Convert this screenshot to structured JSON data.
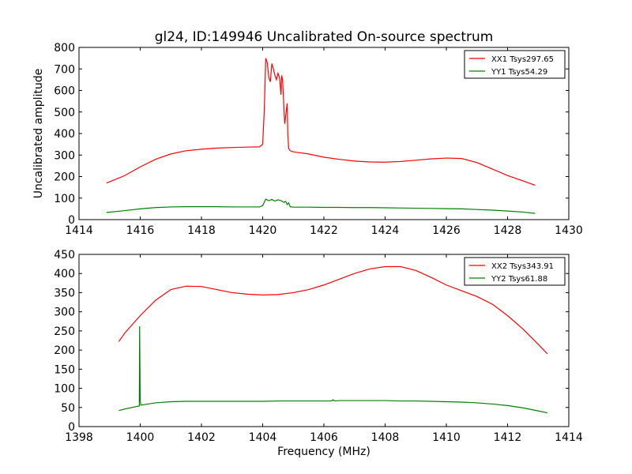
{
  "chart_data": [
    {
      "type": "line",
      "title": "gl24, ID:149946 Uncalibrated On-source spectrum",
      "xlabel": "",
      "ylabel": "Uncalibrated amplitude",
      "xlim": [
        1414,
        1430
      ],
      "ylim": [
        0,
        800
      ],
      "xticks": [
        1414,
        1416,
        1418,
        1420,
        1422,
        1424,
        1426,
        1428,
        1430
      ],
      "yticks": [
        0,
        100,
        200,
        300,
        400,
        500,
        600,
        700,
        800
      ],
      "legend_position": "top-right",
      "series": [
        {
          "name": "XX1 Tsys297.65",
          "color": "#ff0000",
          "x": [
            1414.9,
            1415.5,
            1416.0,
            1416.5,
            1417.0,
            1417.5,
            1418.0,
            1418.5,
            1419.0,
            1419.5,
            1419.9,
            1420.0,
            1420.05,
            1420.1,
            1420.15,
            1420.2,
            1420.25,
            1420.3,
            1420.35,
            1420.4,
            1420.45,
            1420.5,
            1420.55,
            1420.6,
            1420.62,
            1420.65,
            1420.7,
            1420.72,
            1420.75,
            1420.8,
            1420.82,
            1420.85,
            1420.9,
            1421.0,
            1421.5,
            1422.0,
            1422.5,
            1423.0,
            1423.5,
            1424.0,
            1424.5,
            1425.0,
            1425.5,
            1426.0,
            1426.5,
            1427.0,
            1427.5,
            1428.0,
            1428.5,
            1428.9
          ],
          "values": [
            170,
            205,
            245,
            280,
            305,
            320,
            327,
            332,
            335,
            337,
            338,
            350,
            500,
            750,
            730,
            660,
            640,
            725,
            700,
            670,
            650,
            680,
            660,
            580,
            670,
            650,
            500,
            445,
            480,
            540,
            400,
            330,
            320,
            315,
            305,
            290,
            280,
            272,
            268,
            267,
            270,
            276,
            282,
            286,
            284,
            265,
            235,
            205,
            180,
            160
          ]
        },
        {
          "name": "YY1 Tsys54.29",
          "color": "#008000",
          "x": [
            1414.9,
            1415.5,
            1416.0,
            1416.5,
            1417.0,
            1417.5,
            1418.0,
            1418.5,
            1419.0,
            1419.5,
            1419.9,
            1420.0,
            1420.1,
            1420.2,
            1420.3,
            1420.4,
            1420.5,
            1420.6,
            1420.7,
            1420.75,
            1420.8,
            1420.85,
            1420.9,
            1421.0,
            1421.5,
            1422.0,
            1422.5,
            1423.0,
            1423.5,
            1424.0,
            1424.5,
            1425.0,
            1425.5,
            1426.0,
            1426.5,
            1427.0,
            1427.5,
            1428.0,
            1428.5,
            1428.9
          ],
          "values": [
            33,
            42,
            50,
            56,
            59,
            60,
            60,
            60,
            59,
            59,
            59,
            65,
            95,
            88,
            94,
            86,
            92,
            88,
            80,
            85,
            70,
            78,
            60,
            58,
            58,
            57,
            57,
            56,
            56,
            55,
            54,
            53,
            52,
            51,
            50,
            47,
            44,
            40,
            35,
            29
          ]
        }
      ]
    },
    {
      "type": "line",
      "title": "",
      "xlabel": "Frequency (MHz)",
      "ylabel": "",
      "xlim": [
        1398,
        1414
      ],
      "ylim": [
        0,
        450
      ],
      "xticks": [
        1398,
        1400,
        1402,
        1404,
        1406,
        1408,
        1410,
        1412,
        1414
      ],
      "yticks": [
        0,
        50,
        100,
        150,
        200,
        250,
        300,
        350,
        400,
        450
      ],
      "legend_position": "top-right",
      "series": [
        {
          "name": "XX2 Tsys343.91",
          "color": "#ff0000",
          "x": [
            1399.3,
            1399.5,
            1400.0,
            1400.5,
            1401.0,
            1401.5,
            1402.0,
            1402.5,
            1403.0,
            1403.5,
            1404.0,
            1404.5,
            1405.0,
            1405.5,
            1406.0,
            1406.5,
            1407.0,
            1407.5,
            1408.0,
            1408.5,
            1409.0,
            1409.5,
            1410.0,
            1410.5,
            1411.0,
            1411.5,
            1412.0,
            1412.5,
            1413.0,
            1413.3
          ],
          "values": [
            222,
            245,
            290,
            330,
            358,
            367,
            366,
            358,
            350,
            346,
            344,
            345,
            350,
            358,
            370,
            385,
            400,
            412,
            418,
            418,
            408,
            390,
            370,
            355,
            340,
            320,
            290,
            255,
            215,
            190
          ]
        },
        {
          "name": "YY2 Tsys61.88",
          "color": "#008000",
          "x": [
            1399.3,
            1399.5,
            1399.97,
            1399.98,
            1400.0,
            1400.02,
            1400.5,
            1401.0,
            1401.5,
            1402.0,
            1402.5,
            1403.0,
            1403.5,
            1404.0,
            1404.5,
            1405.0,
            1405.5,
            1406.0,
            1406.25,
            1406.3,
            1406.35,
            1406.5,
            1407.0,
            1407.5,
            1408.0,
            1408.5,
            1409.0,
            1409.5,
            1410.0,
            1410.5,
            1411.0,
            1411.5,
            1412.0,
            1412.5,
            1413.0,
            1413.3
          ],
          "values": [
            42,
            46,
            54,
            262,
            70,
            56,
            62,
            65,
            66,
            66,
            66,
            66,
            66,
            66,
            67,
            67,
            67,
            67,
            67,
            70,
            67,
            68,
            68,
            68,
            68,
            67,
            67,
            66,
            65,
            64,
            62,
            59,
            55,
            49,
            41,
            36
          ]
        }
      ]
    }
  ]
}
